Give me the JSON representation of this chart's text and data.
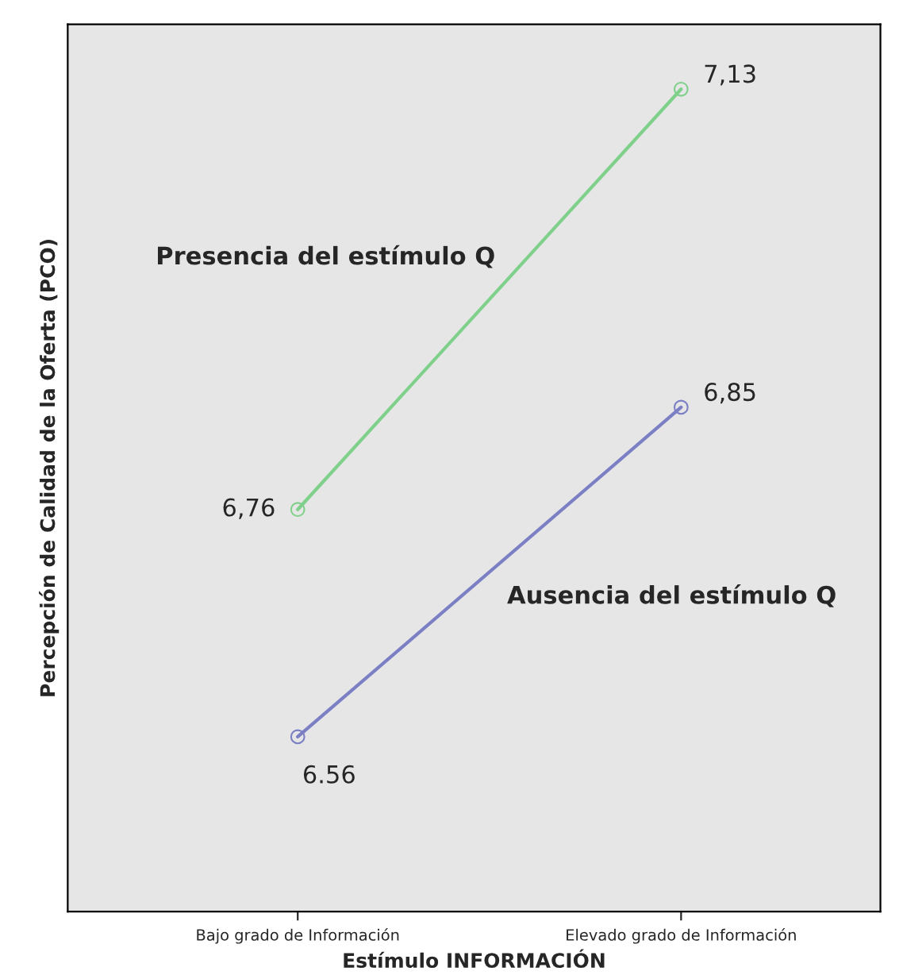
{
  "chart_data": {
    "type": "line",
    "xlabel": "Estímulo INFORMACIÓN",
    "ylabel": "Percepción de Calidad de la Oferta (PCO)",
    "categories": [
      "Bajo grado de Información",
      "Elevado grado de Información"
    ],
    "marker": "circle",
    "series": [
      {
        "name": "Presencia del estímulo Q",
        "color": "#7ed08a",
        "values": [
          6.76,
          7.13
        ],
        "value_labels": [
          "6,76",
          "7,13"
        ]
      },
      {
        "name": "Ausencia del estímulo Q",
        "color": "#7b7fc4",
        "values": [
          6.56,
          6.85
        ],
        "value_labels": [
          "6.56",
          "6,85"
        ]
      }
    ]
  }
}
